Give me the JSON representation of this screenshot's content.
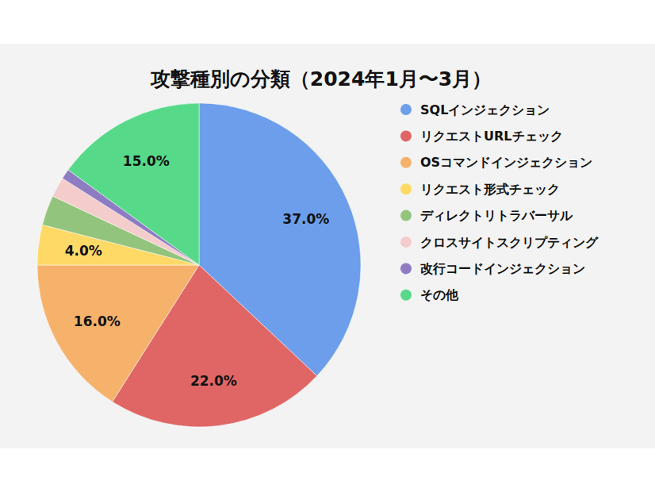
{
  "chart_data": {
    "type": "pie",
    "title": "攻撃種別の分類（2024年1月〜3月）",
    "categories": [
      "SQLインジェクション",
      "リクエストURLチェック",
      "OSコマンドインジェクション",
      "リクエスト形式チェック",
      "ディレクトリトラバーサル",
      "クロスサイトスクリプティング",
      "改行コードインジェクション",
      "その他"
    ],
    "values": [
      37,
      22,
      16,
      4,
      3,
      2,
      1,
      15
    ],
    "value_labels": [
      "37.0%",
      "22.0%",
      "16.0%",
      "4.0%",
      null,
      null,
      null,
      "15.0%"
    ],
    "colors": [
      "#6d9eeb",
      "#e06666",
      "#f6b26b",
      "#ffd966",
      "#93c47d",
      "#f4cccc",
      "#8e7cc3",
      "#57d98a"
    ],
    "data_labels": true,
    "legend": "right"
  }
}
